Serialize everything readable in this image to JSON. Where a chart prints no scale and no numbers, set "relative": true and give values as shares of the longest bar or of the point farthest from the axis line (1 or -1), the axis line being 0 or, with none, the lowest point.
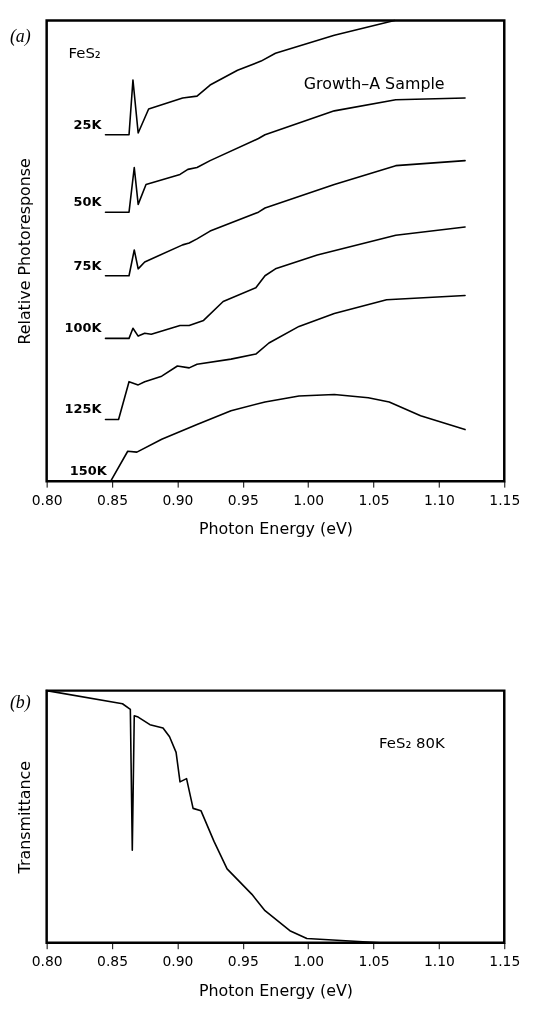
{
  "chart_data": [
    {
      "type": "line",
      "relative": true,
      "xlabel": "Photon Energy (eV)",
      "ylabel": "Relative Photoresponse",
      "annotations": [
        "(a)",
        "FeS₂",
        "Growth–A Sample"
      ],
      "xlim": [
        0.8,
        1.15
      ],
      "xticks": [
        {
          "value": 0.8,
          "label": "0.80"
        },
        {
          "value": 0.85,
          "label": "0.85"
        },
        {
          "value": 0.9,
          "label": "0.90"
        },
        {
          "value": 0.95,
          "label": "0.95"
        },
        {
          "value": 1.0,
          "label": "1.00"
        },
        {
          "value": 1.05,
          "label": "1.05"
        },
        {
          "value": 1.1,
          "label": "1.10"
        },
        {
          "value": 1.15,
          "label": "1.15"
        }
      ],
      "grid": false,
      "legend": false,
      "marker": "none",
      "line_style": "solid",
      "series": [
        {
          "name": "25K",
          "color": "#000000",
          "x": [
            0.845,
            0.863,
            0.866,
            0.87,
            0.878,
            0.904,
            0.915,
            0.925,
            0.946,
            0.964,
            0.975,
            1.02,
            1.066
          ],
          "values": [
            0.752,
            0.752,
            0.871,
            0.756,
            0.808,
            0.832,
            0.836,
            0.86,
            0.892,
            0.912,
            0.929,
            0.968,
            1.0
          ]
        },
        {
          "name": "50K",
          "color": "#000000",
          "x": [
            0.845,
            0.863,
            0.867,
            0.87,
            0.876,
            0.902,
            0.908,
            0.915,
            0.925,
            0.962,
            0.967,
            1.02,
            1.067,
            1.12
          ],
          "values": [
            0.584,
            0.584,
            0.681,
            0.601,
            0.644,
            0.666,
            0.677,
            0.681,
            0.696,
            0.744,
            0.752,
            0.804,
            0.828,
            0.832
          ]
        },
        {
          "name": "75K",
          "color": "#000000",
          "x": [
            0.845,
            0.863,
            0.867,
            0.87,
            0.875,
            0.904,
            0.909,
            0.915,
            0.925,
            0.962,
            0.967,
            1.02,
            1.067,
            1.12
          ],
          "values": [
            0.446,
            0.446,
            0.502,
            0.461,
            0.476,
            0.513,
            0.517,
            0.526,
            0.543,
            0.584,
            0.593,
            0.644,
            0.685,
            0.696
          ]
        },
        {
          "name": "100K",
          "color": "#000000",
          "x": [
            0.845,
            0.863,
            0.866,
            0.87,
            0.875,
            0.88,
            0.902,
            0.909,
            0.92,
            0.935,
            0.96,
            0.967,
            0.975,
            1.007,
            1.067,
            1.12
          ],
          "values": [
            0.31,
            0.31,
            0.332,
            0.315,
            0.321,
            0.319,
            0.338,
            0.338,
            0.349,
            0.39,
            0.42,
            0.446,
            0.461,
            0.491,
            0.534,
            0.552
          ]
        },
        {
          "name": "125K",
          "color": "#000000",
          "x": [
            0.845,
            0.855,
            0.863,
            0.87,
            0.875,
            0.888,
            0.9,
            0.909,
            0.915,
            0.941,
            0.96,
            0.97,
            0.993,
            1.02,
            1.06,
            1.12
          ],
          "values": [
            0.134,
            0.134,
            0.216,
            0.209,
            0.216,
            0.228,
            0.25,
            0.246,
            0.254,
            0.265,
            0.276,
            0.3,
            0.336,
            0.364,
            0.394,
            0.403
          ]
        },
        {
          "name": "150K",
          "color": "#000000",
          "x": [
            0.849,
            0.862,
            0.869,
            0.888,
            0.915,
            0.941,
            0.967,
            0.993,
            1.02,
            1.046,
            1.062,
            1.086,
            1.12
          ],
          "values": [
            0.0,
            0.065,
            0.063,
            0.091,
            0.123,
            0.153,
            0.172,
            0.185,
            0.188,
            0.181,
            0.172,
            0.142,
            0.112
          ]
        }
      ]
    },
    {
      "type": "line",
      "relative": true,
      "xlabel": "Photon Energy (eV)",
      "ylabel": "Transmittance",
      "annotations": [
        "(b)",
        "FeS₂  80K"
      ],
      "xlim": [
        0.8,
        1.15
      ],
      "xticks": [
        {
          "value": 0.8,
          "label": "0.80"
        },
        {
          "value": 0.85,
          "label": "0.85"
        },
        {
          "value": 0.9,
          "label": "0.90"
        },
        {
          "value": 0.95,
          "label": "0.95"
        },
        {
          "value": 1.0,
          "label": "1.00"
        },
        {
          "value": 1.05,
          "label": "1.05"
        },
        {
          "value": 1.1,
          "label": "1.10"
        },
        {
          "value": 1.15,
          "label": "1.15"
        }
      ],
      "grid": false,
      "legend": false,
      "marker": "none",
      "line_style": "solid",
      "series": [
        {
          "color": "#000000",
          "x": [
            0.8,
            0.858,
            0.864,
            0.8655,
            0.867,
            0.87,
            0.879,
            0.889,
            0.894,
            0.899,
            0.902,
            0.907,
            0.912,
            0.918,
            0.928,
            0.938,
            0.957,
            0.967,
            0.986,
            0.999,
            1.055
          ],
          "values": [
            1.0,
            0.948,
            0.926,
            0.367,
            0.9,
            0.895,
            0.865,
            0.852,
            0.817,
            0.755,
            0.638,
            0.651,
            0.533,
            0.524,
            0.402,
            0.293,
            0.192,
            0.127,
            0.048,
            0.017,
            0.0
          ]
        }
      ]
    }
  ]
}
